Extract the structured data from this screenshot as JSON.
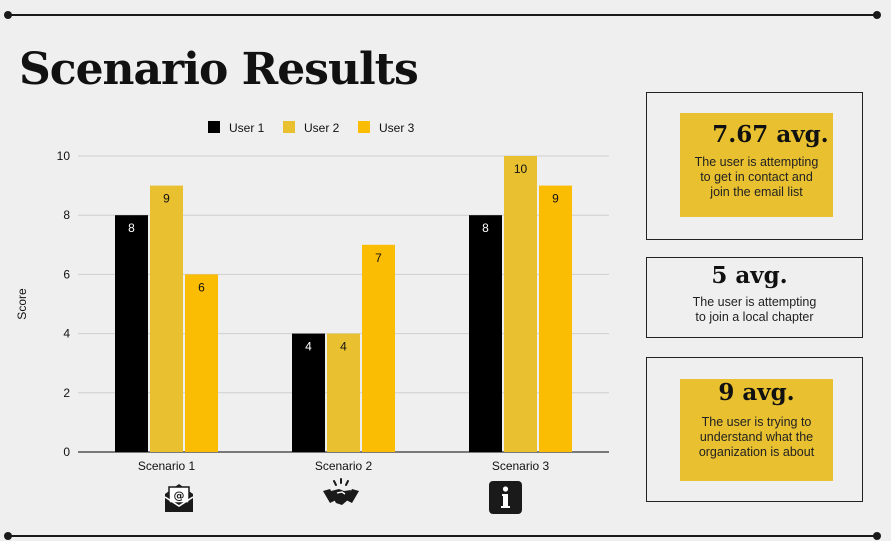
{
  "page": {
    "title": "Scenario Results"
  },
  "chart_data": {
    "type": "bar",
    "categories": [
      "Scenario 1",
      "Scenario 2",
      "Scenario 3"
    ],
    "series": [
      {
        "name": "User 1",
        "color": "#000000",
        "values": [
          8,
          4,
          8
        ]
      },
      {
        "name": "User 2",
        "color": "#e8c030",
        "values": [
          9,
          4,
          10
        ]
      },
      {
        "name": "User 3",
        "color": "#fbbc04",
        "values": [
          6,
          7,
          9
        ]
      }
    ],
    "ylabel": "Score",
    "ylim": [
      0,
      10
    ],
    "yticks": [
      0,
      2,
      4,
      6,
      8,
      10
    ],
    "grid": true,
    "legend": "top",
    "data_labels": true
  },
  "category_icons": [
    "email-envelope-icon",
    "handshake-icon",
    "info-icon"
  ],
  "cards": [
    {
      "value": "7.67 avg.",
      "text": [
        "The user is attempting",
        "to get in contact and",
        "join the email list"
      ],
      "highlight": true
    },
    {
      "value": "5 avg.",
      "text": [
        "The user is attempting",
        "to join a local chapter"
      ],
      "highlight": false
    },
    {
      "value": "9 avg.",
      "text": [
        "The user is trying to",
        "understand what the",
        "organization is about"
      ],
      "highlight": true
    }
  ],
  "colors": {
    "accent": "#e8c030",
    "background": "#efefef",
    "text": "#111111"
  }
}
